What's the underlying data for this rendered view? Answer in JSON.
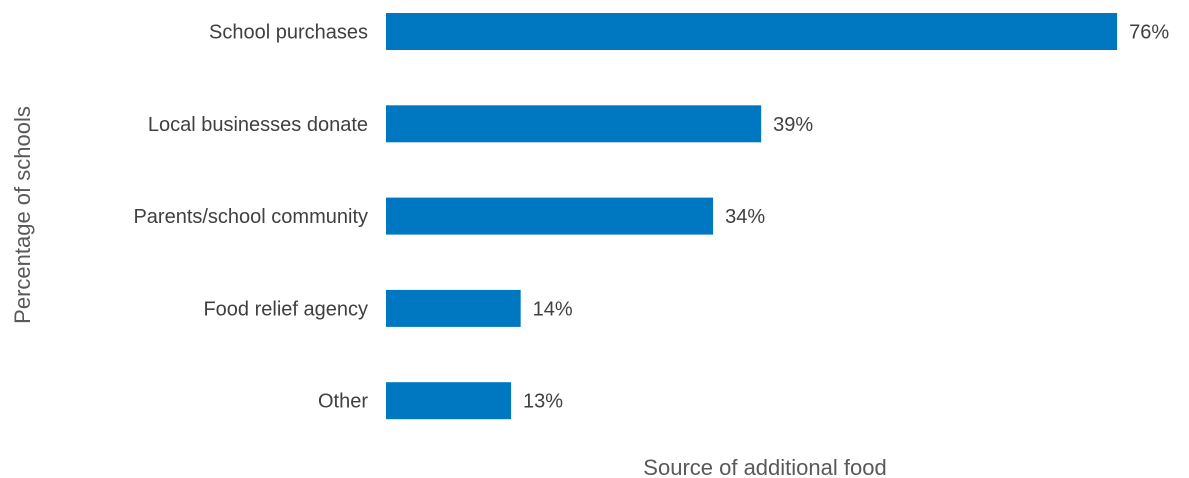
{
  "chart_data": {
    "type": "bar",
    "orientation": "horizontal",
    "categories": [
      "School purchases",
      "Local businesses donate",
      "Parents/school community",
      "Food relief agency",
      "Other"
    ],
    "values": [
      76,
      39,
      34,
      14,
      13
    ],
    "value_labels": [
      "76%",
      "39%",
      "34%",
      "14%",
      "13%"
    ],
    "xlabel": "Source of additional food",
    "ylabel": "Percentage of schools",
    "xlim": [
      0,
      76
    ],
    "grid": false,
    "legend": "none",
    "bar_color": "#0078C1"
  }
}
